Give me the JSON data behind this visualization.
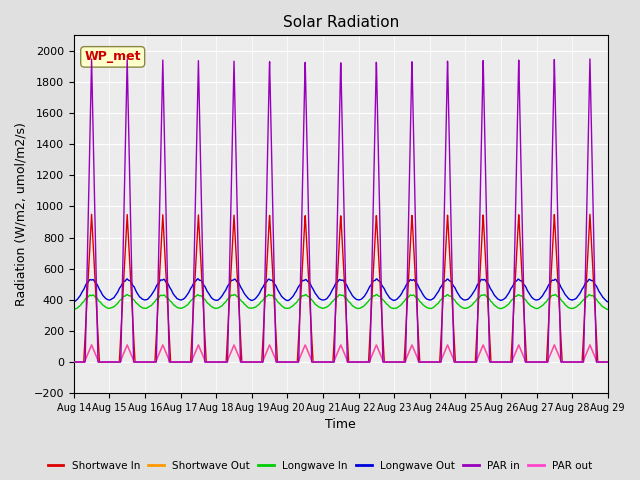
{
  "title": "Solar Radiation",
  "xlabel": "Time",
  "ylabel": "Radiation (W/m2, umol/m2/s)",
  "ylim": [
    -200,
    2100
  ],
  "yticks": [
    -200,
    0,
    200,
    400,
    600,
    800,
    1000,
    1200,
    1400,
    1600,
    1800,
    2000
  ],
  "num_days": 15,
  "num_points": 3000,
  "legend_labels": [
    "Shortwave In",
    "Shortwave Out",
    "Longwave In",
    "Longwave Out",
    "PAR in",
    "PAR out"
  ],
  "legend_colors": [
    "#dd0000",
    "#ff9900",
    "#00cc00",
    "#0000dd",
    "#9900bb",
    "#ff44cc"
  ],
  "annotation_text": "WP_met",
  "annotation_color": "#cc0000",
  "annotation_bg": "#ffffcc",
  "background_color": "#e0e0e0",
  "plot_bg_color": "#ececec",
  "grid_color": "#ffffff",
  "shortwave_in_peak": 950,
  "shortwave_out_peak": 110,
  "longwave_in_base": 330,
  "longwave_in_peak": 430,
  "longwave_out_base": 375,
  "longwave_out_peak": 530,
  "par_in_peak": 1950,
  "par_out_peak": 110
}
